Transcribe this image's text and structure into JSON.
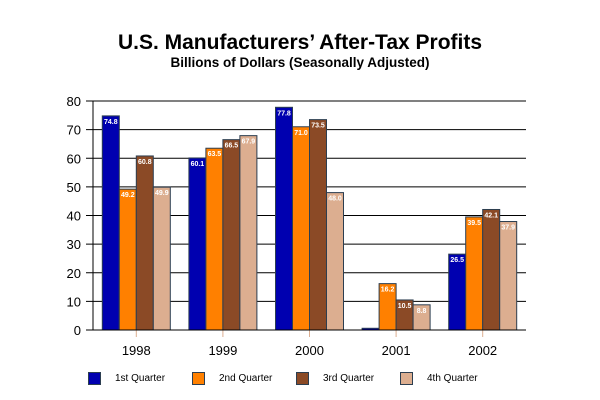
{
  "chart_data": {
    "type": "bar",
    "title": "U.S. Manufacturers’ After-Tax Profits",
    "subtitle": "Billions of Dollars (Seasonally Adjusted)",
    "xlabel": "",
    "ylabel": "",
    "ylim": [
      0,
      80
    ],
    "yticks": [
      "0",
      "10",
      "20",
      "30",
      "40",
      "50",
      "60",
      "70",
      "80"
    ],
    "grid": true,
    "legend_position": "bottom",
    "categories": [
      "1998",
      "1999",
      "2000",
      "2001",
      "2002"
    ],
    "series": [
      {
        "name": "1st Quarter",
        "color": "#0000b0",
        "values": [
          74.8,
          60.1,
          77.8,
          0.6,
          26.5
        ],
        "labels": [
          "74.8",
          "60.1",
          "77.8",
          "",
          "26.5"
        ]
      },
      {
        "name": "2nd Quarter",
        "color": "#ff8000",
        "values": [
          49.2,
          63.5,
          71.0,
          16.2,
          39.5
        ],
        "labels": [
          "49.2",
          "63.5",
          "71.0",
          "16.2",
          "39.5"
        ]
      },
      {
        "name": "3rd Quarter",
        "color": "#8b4a26",
        "values": [
          60.8,
          66.5,
          73.5,
          10.5,
          42.1
        ],
        "labels": [
          "60.8",
          "66.5",
          "73.5",
          "10.5",
          "42.1"
        ]
      },
      {
        "name": "4th Quarter",
        "color": "#dcae90",
        "values": [
          49.9,
          67.9,
          48.0,
          8.8,
          37.9
        ],
        "labels": [
          "49.9",
          "67.9",
          "48.0",
          "8.8",
          "37.9"
        ]
      }
    ]
  }
}
